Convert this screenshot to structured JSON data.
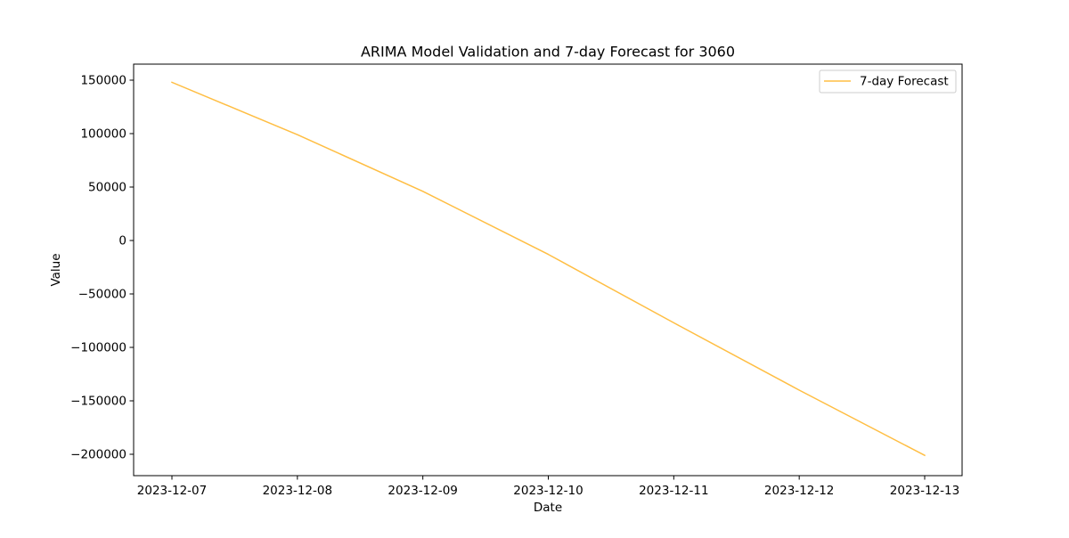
{
  "chart_data": {
    "type": "line",
    "title": "ARIMA Model Validation and 7-day Forecast for 3060",
    "xlabel": "Date",
    "ylabel": "Value",
    "x": [
      "2023-12-07",
      "2023-12-08",
      "2023-12-09",
      "2023-12-10",
      "2023-12-11",
      "2023-12-12",
      "2023-12-13"
    ],
    "x_ticks": [
      "2023-12-07",
      "2023-12-08",
      "2023-12-09",
      "2023-12-10",
      "2023-12-11",
      "2023-12-12",
      "2023-12-13"
    ],
    "y_ticks": [
      150000,
      100000,
      50000,
      0,
      -50000,
      -100000,
      -150000,
      -200000
    ],
    "y_tick_labels": [
      "150000",
      "100000",
      "50000",
      "0",
      "−50000",
      "−100000",
      "−150000",
      "−200000"
    ],
    "ylim": [
      -220000,
      165000
    ],
    "grid": false,
    "legend_position": "top-right",
    "series": [
      {
        "name": "7-day Forecast",
        "color": "#ffbe43",
        "values": [
          148000,
          99000,
          46000,
          -13000,
          -77000,
          -140000,
          -201000
        ]
      }
    ]
  }
}
